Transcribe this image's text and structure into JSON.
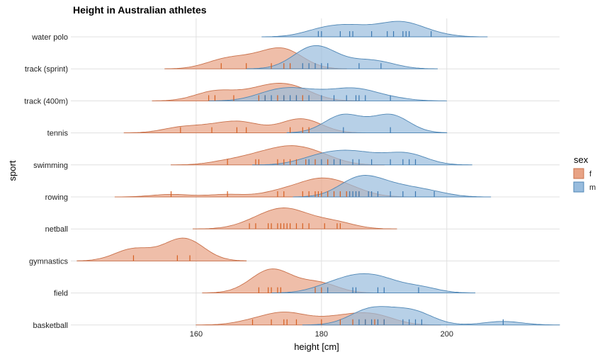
{
  "chart_data": {
    "type": "ridgeline",
    "title": "Height in Australian athletes",
    "xlabel": "height [cm]",
    "ylabel": "sport",
    "xlim": [
      140,
      218
    ],
    "xticks": [
      160,
      180,
      200
    ],
    "legend": {
      "title": "sex",
      "position": "right",
      "entries": [
        {
          "key": "f",
          "label": "f",
          "color": "#E8A385",
          "stroke": "#C8704A"
        },
        {
          "key": "m",
          "label": "m",
          "color": "#98BCDD",
          "stroke": "#4E86B5"
        }
      ]
    },
    "rug_colors": {
      "f": "#D55E1F",
      "m": "#3A77B0"
    },
    "sports": [
      {
        "name": "water polo",
        "f": [],
        "m": [
          179.5,
          180,
          183,
          184.5,
          185,
          188,
          190.5,
          191.5,
          193,
          193.5,
          194,
          197.5
        ]
      },
      {
        "name": "track (sprint)",
        "f": [
          164,
          168,
          172,
          174,
          175
        ],
        "m": [
          177,
          178,
          179,
          180,
          181,
          186,
          189.5
        ]
      },
      {
        "name": "track (400m)",
        "f": [
          162,
          163,
          166,
          170,
          171,
          173,
          174,
          176,
          177
        ],
        "m": [
          171,
          172,
          174,
          175,
          176,
          178,
          180,
          182,
          184,
          185.5,
          186,
          187,
          191
        ]
      },
      {
        "name": "tennis",
        "f": [
          157.5,
          162.5,
          166.5,
          168,
          175,
          177,
          178
        ],
        "m": [
          183.5,
          191
        ]
      },
      {
        "name": "swimming",
        "f": [
          165,
          169.5,
          170,
          173,
          174,
          175,
          176,
          177.5,
          179,
          181
        ],
        "m": [
          178,
          180,
          182,
          183,
          185,
          186,
          188,
          191,
          193,
          194,
          195
        ]
      },
      {
        "name": "rowing",
        "f": [
          156,
          165,
          173,
          174,
          177,
          178,
          179,
          179.5,
          180,
          181,
          182,
          183,
          184,
          186
        ],
        "m": [
          184.5,
          185,
          185.5,
          186,
          187.5,
          188,
          189,
          191,
          193,
          195,
          198
        ]
      },
      {
        "name": "netball",
        "f": [
          168.5,
          169.5,
          171.5,
          172,
          173,
          173.5,
          174,
          174.5,
          175,
          176,
          177,
          178,
          180.5,
          182.5,
          183
        ]
      },
      {
        "name": "gymnastics",
        "f": [
          150,
          157,
          159
        ]
      },
      {
        "name": "field",
        "f": [
          170,
          171.5,
          172,
          173,
          173.5,
          179,
          180
        ],
        "m": [
          181,
          185,
          185.5,
          189,
          190,
          195.5
        ]
      },
      {
        "name": "basketball",
        "f": [
          169,
          172,
          174,
          174.5,
          176,
          180,
          183,
          185,
          187,
          188.5,
          190
        ],
        "m": [
          186,
          187,
          188,
          189,
          190,
          193,
          194,
          195,
          196,
          209
        ]
      }
    ]
  }
}
